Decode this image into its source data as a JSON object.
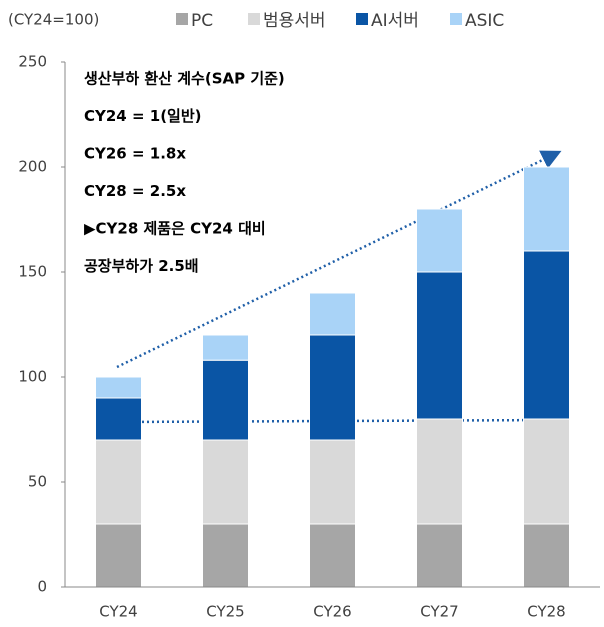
{
  "chart_data": {
    "type": "stacked_bar",
    "unit_label": "(CY24=100)",
    "categories": [
      "CY24",
      "CY25",
      "CY26",
      "CY27",
      "CY28"
    ],
    "series": [
      {
        "name": "PC",
        "color": "#a6a6a6",
        "values": [
          30,
          30,
          30,
          30,
          30
        ]
      },
      {
        "name": "범용서버",
        "color": "#d9d9d9",
        "values": [
          40,
          40,
          40,
          50,
          50
        ]
      },
      {
        "name": "AI서버",
        "color": "#0a55a5",
        "values": [
          20,
          38,
          50,
          70,
          80
        ]
      },
      {
        "name": "ASIC",
        "color": "#a9d3f7",
        "values": [
          10,
          12,
          20,
          30,
          40
        ]
      }
    ],
    "ylim": [
      0,
      250
    ],
    "yticks": [
      0,
      50,
      100,
      150,
      200,
      250
    ],
    "annotations": [
      "생산부하 환산 계수(SAP 기준)",
      "CY24 = 1(일반)",
      "CY26 = 1.8x",
      "CY28 = 2.5x",
      "▶CY28 제품은 CY24 대비",
      "공장부하가 2.5배"
    ],
    "legend": "top"
  }
}
